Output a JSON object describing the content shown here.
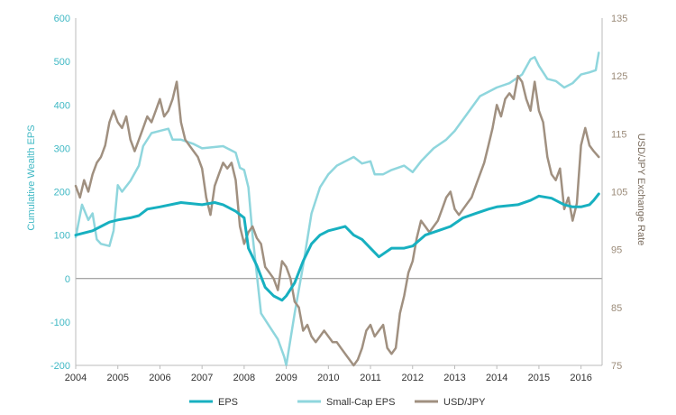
{
  "chart_data": {
    "type": "line",
    "title": "",
    "xlabel": "",
    "x_ticks": [
      "2004",
      "2005",
      "2006",
      "2007",
      "2008",
      "2009",
      "2010",
      "2011",
      "2012",
      "2013",
      "2014",
      "2015",
      "2016"
    ],
    "xlim": [
      2004.0,
      2016.5
    ],
    "left_axis": {
      "label": "Cumulative Wealth EPS",
      "ylim": [
        -200,
        600
      ],
      "ticks": [
        "-200",
        "-100",
        "0",
        "100",
        "200",
        "300",
        "400",
        "500",
        "600"
      ],
      "color": "#3fb8c4"
    },
    "right_axis": {
      "label": "USD/JPY Exchange Rate",
      "ylim": [
        75,
        135
      ],
      "ticks": [
        "75",
        "85",
        "95",
        "105",
        "115",
        "125",
        "135"
      ],
      "color": "#9b8b79"
    },
    "legend_position": "bottom",
    "series": [
      {
        "name": "EPS",
        "axis": "left",
        "color": "#17b0c0",
        "x": [
          2004.0,
          2004.2,
          2004.4,
          2004.6,
          2004.8,
          2005.0,
          2005.3,
          2005.5,
          2005.7,
          2006.0,
          2006.5,
          2007.0,
          2007.3,
          2007.5,
          2007.8,
          2008.0,
          2008.1,
          2008.3,
          2008.5,
          2008.7,
          2008.9,
          2009.0,
          2009.2,
          2009.4,
          2009.6,
          2009.8,
          2010.0,
          2010.2,
          2010.4,
          2010.6,
          2010.8,
          2011.0,
          2011.2,
          2011.5,
          2011.8,
          2012.0,
          2012.3,
          2012.6,
          2012.9,
          2013.2,
          2013.5,
          2013.8,
          2014.0,
          2014.5,
          2014.8,
          2015.0,
          2015.3,
          2015.6,
          2015.8,
          2016.0,
          2016.2,
          2016.3,
          2016.42
        ],
        "values": [
          100,
          105,
          110,
          120,
          130,
          135,
          140,
          145,
          160,
          165,
          175,
          170,
          175,
          170,
          155,
          140,
          70,
          30,
          -20,
          -40,
          -50,
          -40,
          -10,
          40,
          80,
          100,
          110,
          115,
          120,
          100,
          90,
          70,
          50,
          70,
          70,
          75,
          100,
          110,
          120,
          140,
          150,
          160,
          165,
          170,
          180,
          190,
          185,
          170,
          165,
          165,
          170,
          180,
          195
        ]
      },
      {
        "name": "Small-Cap EPS",
        "axis": "left",
        "color": "#8fd6dd",
        "x": [
          2004.0,
          2004.15,
          2004.3,
          2004.4,
          2004.5,
          2004.6,
          2004.8,
          2004.9,
          2005.0,
          2005.1,
          2005.3,
          2005.5,
          2005.6,
          2005.8,
          2006.0,
          2006.2,
          2006.3,
          2006.5,
          2006.8,
          2007.0,
          2007.5,
          2007.8,
          2007.9,
          2008.0,
          2008.1,
          2008.2,
          2008.4,
          2008.6,
          2008.8,
          2008.95,
          2009.0,
          2009.2,
          2009.4,
          2009.6,
          2009.8,
          2010.0,
          2010.2,
          2010.4,
          2010.6,
          2010.8,
          2011.0,
          2011.1,
          2011.3,
          2011.5,
          2011.8,
          2012.0,
          2012.2,
          2012.5,
          2012.8,
          2013.0,
          2013.3,
          2013.6,
          2014.0,
          2014.3,
          2014.6,
          2014.8,
          2014.9,
          2015.0,
          2015.2,
          2015.4,
          2015.6,
          2015.8,
          2016.0,
          2016.2,
          2016.35,
          2016.42
        ],
        "values": [
          95,
          170,
          135,
          150,
          90,
          80,
          75,
          110,
          215,
          200,
          225,
          260,
          305,
          335,
          340,
          345,
          320,
          320,
          310,
          300,
          305,
          290,
          255,
          250,
          210,
          100,
          -80,
          -110,
          -140,
          -180,
          -200,
          -80,
          30,
          150,
          210,
          240,
          260,
          270,
          280,
          265,
          270,
          240,
          240,
          250,
          260,
          245,
          270,
          300,
          320,
          340,
          380,
          420,
          440,
          450,
          470,
          505,
          510,
          490,
          460,
          455,
          440,
          450,
          470,
          475,
          480,
          520
        ]
      },
      {
        "name": "USD/JPY",
        "axis": "right",
        "color": "#a09080",
        "x": [
          2004.0,
          2004.1,
          2004.2,
          2004.3,
          2004.4,
          2004.5,
          2004.6,
          2004.7,
          2004.8,
          2004.9,
          2005.0,
          2005.1,
          2005.2,
          2005.3,
          2005.4,
          2005.5,
          2005.6,
          2005.7,
          2005.8,
          2005.9,
          2006.0,
          2006.1,
          2006.2,
          2006.3,
          2006.4,
          2006.5,
          2006.6,
          2006.7,
          2006.8,
          2006.9,
          2007.0,
          2007.1,
          2007.2,
          2007.3,
          2007.4,
          2007.5,
          2007.6,
          2007.7,
          2007.8,
          2007.9,
          2008.0,
          2008.1,
          2008.2,
          2008.3,
          2008.4,
          2008.5,
          2008.6,
          2008.7,
          2008.8,
          2008.9,
          2009.0,
          2009.1,
          2009.2,
          2009.3,
          2009.4,
          2009.5,
          2009.6,
          2009.7,
          2009.8,
          2009.9,
          2010.0,
          2010.1,
          2010.2,
          2010.3,
          2010.4,
          2010.5,
          2010.6,
          2010.7,
          2010.8,
          2010.9,
          2011.0,
          2011.1,
          2011.2,
          2011.3,
          2011.4,
          2011.5,
          2011.6,
          2011.7,
          2011.8,
          2011.9,
          2012.0,
          2012.1,
          2012.2,
          2012.3,
          2012.4,
          2012.5,
          2012.6,
          2012.7,
          2012.8,
          2012.9,
          2013.0,
          2013.1,
          2013.2,
          2013.3,
          2013.4,
          2013.5,
          2013.6,
          2013.7,
          2013.8,
          2013.9,
          2014.0,
          2014.1,
          2014.2,
          2014.3,
          2014.4,
          2014.5,
          2014.6,
          2014.7,
          2014.8,
          2014.9,
          2015.0,
          2015.1,
          2015.2,
          2015.3,
          2015.4,
          2015.5,
          2015.6,
          2015.7,
          2015.8,
          2015.9,
          2016.0,
          2016.1,
          2016.2,
          2016.3,
          2016.42
        ],
        "values": [
          106,
          104,
          107,
          105,
          108,
          110,
          111,
          113,
          117,
          119,
          117,
          116,
          118,
          114,
          112,
          114,
          116,
          118,
          117,
          119,
          121,
          118,
          119,
          121,
          124,
          117,
          114,
          113,
          112,
          111,
          109,
          104,
          101,
          106,
          108,
          110,
          109,
          110,
          107,
          99,
          96,
          98,
          99,
          97,
          96,
          92,
          91,
          90,
          88,
          93,
          92,
          90,
          86,
          85,
          81,
          82,
          80,
          79,
          80,
          81,
          80,
          79,
          79,
          78,
          77,
          76,
          75,
          76,
          78,
          81,
          82,
          80,
          81,
          82,
          78,
          77,
          78,
          84,
          87,
          91,
          93,
          97,
          100,
          99,
          98,
          99,
          100,
          102,
          104,
          105,
          102,
          101,
          102,
          103,
          104,
          106,
          108,
          110,
          113,
          116,
          120,
          118,
          121,
          122,
          121,
          125,
          124,
          121,
          119,
          124,
          119,
          117,
          111,
          108,
          107,
          109,
          102,
          104,
          100,
          103,
          113,
          116,
          113,
          112,
          111
        ]
      }
    ]
  }
}
